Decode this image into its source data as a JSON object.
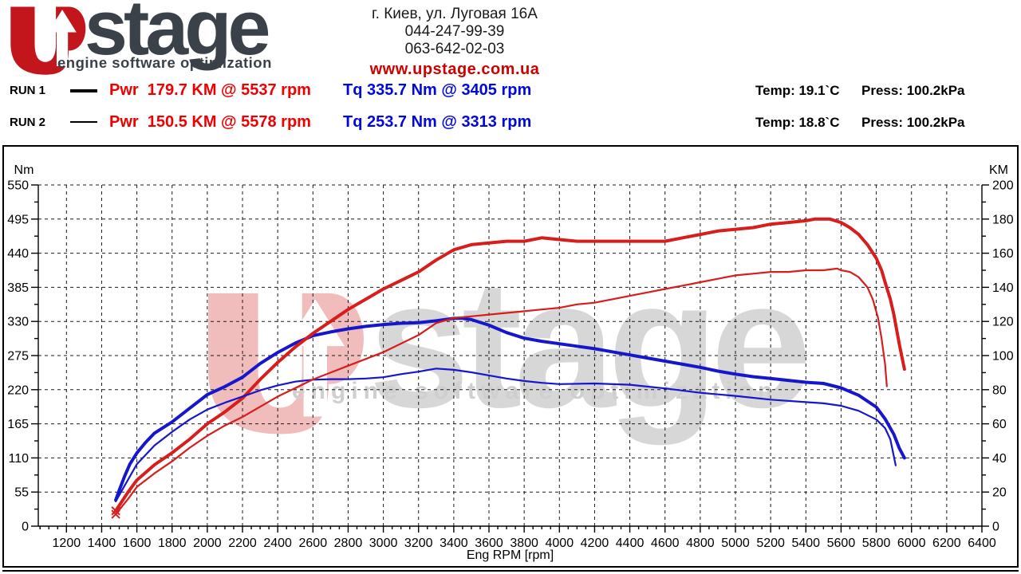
{
  "header": {
    "logo": {
      "brand": "stage",
      "tagline": "engine software optimization",
      "brand_color": "#3a4148",
      "accent_red": "#c3161c"
    },
    "contact": {
      "address": "г. Киев, ул. Луговая 16А",
      "phone1": "044-247-99-39",
      "phone2": "063-642-02-03",
      "website": "www.upstage.com.ua"
    },
    "runs": [
      {
        "label": "RUN 1",
        "power": "Pwr  179.7 KM @ 5537 rpm",
        "torque": "Tq 335.7 Nm @ 3405 rpm",
        "temp": "Temp: 19.1`C",
        "press": "Press: 100.2kPa"
      },
      {
        "label": "RUN 2",
        "power": "Pwr  150.5 KM @ 5578 rpm",
        "torque": "Tq 253.7 Nm @ 3313 rpm",
        "temp": "Temp: 18.8`C",
        "press": "Press: 100.2kPa"
      }
    ]
  },
  "watermark": {
    "brand": "stage",
    "tagline": "engine software optimization"
  },
  "chart_data": {
    "type": "line",
    "x_axis": {
      "label": "Eng RPM [rpm]",
      "min": 1200,
      "max": 6400,
      "tick_step": 200,
      "minor_step": 50
    },
    "y_left": {
      "label": "Nm",
      "min": 0,
      "max": 550,
      "tick_step": 55,
      "minor_step": 27.5
    },
    "y_right": {
      "label": "KM",
      "min": 0,
      "max": 200,
      "tick_step": 20,
      "minor_step": 10
    },
    "grid": "dashed",
    "legend_position": "header",
    "colors": {
      "power": "#d81d1d",
      "torque": "#1616cc"
    },
    "series": [
      {
        "name": "RUN 1 Torque",
        "unit": "Nm",
        "axis": "left",
        "color": "#1616cc",
        "width": 4,
        "peak": "335.7 Nm @ 3405 rpm",
        "points": [
          [
            1480,
            42
          ],
          [
            1500,
            58
          ],
          [
            1530,
            80
          ],
          [
            1560,
            100
          ],
          [
            1600,
            118
          ],
          [
            1650,
            135
          ],
          [
            1700,
            150
          ],
          [
            1800,
            168
          ],
          [
            1900,
            190
          ],
          [
            2000,
            212
          ],
          [
            2100,
            225
          ],
          [
            2200,
            240
          ],
          [
            2300,
            262
          ],
          [
            2400,
            280
          ],
          [
            2500,
            295
          ],
          [
            2600,
            307
          ],
          [
            2700,
            313
          ],
          [
            2800,
            318
          ],
          [
            2900,
            322
          ],
          [
            3000,
            325
          ],
          [
            3100,
            327
          ],
          [
            3200,
            328
          ],
          [
            3300,
            331
          ],
          [
            3400,
            335
          ],
          [
            3450,
            335
          ],
          [
            3500,
            333
          ],
          [
            3600,
            324
          ],
          [
            3700,
            312
          ],
          [
            3800,
            303
          ],
          [
            3900,
            298
          ],
          [
            4000,
            294
          ],
          [
            4100,
            290
          ],
          [
            4200,
            286
          ],
          [
            4300,
            281
          ],
          [
            4400,
            276
          ],
          [
            4500,
            271
          ],
          [
            4600,
            266
          ],
          [
            4700,
            261
          ],
          [
            4800,
            256
          ],
          [
            4900,
            250
          ],
          [
            5000,
            245
          ],
          [
            5100,
            241
          ],
          [
            5200,
            238
          ],
          [
            5300,
            235
          ],
          [
            5400,
            232
          ],
          [
            5500,
            230
          ],
          [
            5600,
            223
          ],
          [
            5700,
            211
          ],
          [
            5800,
            192
          ],
          [
            5850,
            173
          ],
          [
            5900,
            148
          ],
          [
            5930,
            126
          ],
          [
            5960,
            110
          ]
        ]
      },
      {
        "name": "RUN 1 Power",
        "unit": "KM",
        "axis": "right",
        "color": "#d81d1d",
        "width": 4,
        "peak": "179.7 KM @ 5537 rpm",
        "start_marker": "x",
        "points": [
          [
            1480,
            9
          ],
          [
            1550,
            20
          ],
          [
            1600,
            27
          ],
          [
            1700,
            36
          ],
          [
            1800,
            43
          ],
          [
            1900,
            51
          ],
          [
            2000,
            60
          ],
          [
            2100,
            67
          ],
          [
            2200,
            75
          ],
          [
            2300,
            86
          ],
          [
            2400,
            96
          ],
          [
            2500,
            105
          ],
          [
            2600,
            113
          ],
          [
            2700,
            120
          ],
          [
            2800,
            127
          ],
          [
            2900,
            133
          ],
          [
            3000,
            139
          ],
          [
            3100,
            144
          ],
          [
            3200,
            149
          ],
          [
            3300,
            156
          ],
          [
            3400,
            162
          ],
          [
            3500,
            165
          ],
          [
            3600,
            166
          ],
          [
            3700,
            167
          ],
          [
            3800,
            167
          ],
          [
            3900,
            169
          ],
          [
            4000,
            168
          ],
          [
            4100,
            167
          ],
          [
            4200,
            167
          ],
          [
            4300,
            167
          ],
          [
            4400,
            167
          ],
          [
            4500,
            167
          ],
          [
            4600,
            167
          ],
          [
            4700,
            169
          ],
          [
            4800,
            171
          ],
          [
            4900,
            173
          ],
          [
            5000,
            174
          ],
          [
            5100,
            175
          ],
          [
            5200,
            177
          ],
          [
            5300,
            178
          ],
          [
            5400,
            179
          ],
          [
            5450,
            180
          ],
          [
            5537,
            180
          ],
          [
            5600,
            178
          ],
          [
            5650,
            175
          ],
          [
            5700,
            171
          ],
          [
            5750,
            165
          ],
          [
            5800,
            157
          ],
          [
            5830,
            150
          ],
          [
            5850,
            143
          ],
          [
            5880,
            133
          ],
          [
            5900,
            124
          ],
          [
            5930,
            107
          ],
          [
            5960,
            92
          ]
        ]
      },
      {
        "name": "RUN 2 Torque",
        "unit": "Nm",
        "axis": "left",
        "color": "#1616cc",
        "width": 2.2,
        "peak": "253.7 Nm @ 3313 rpm",
        "points": [
          [
            1480,
            40
          ],
          [
            1520,
            60
          ],
          [
            1560,
            80
          ],
          [
            1600,
            100
          ],
          [
            1700,
            130
          ],
          [
            1800,
            152
          ],
          [
            1900,
            172
          ],
          [
            2000,
            188
          ],
          [
            2100,
            199
          ],
          [
            2200,
            209
          ],
          [
            2300,
            219
          ],
          [
            2400,
            227
          ],
          [
            2500,
            233
          ],
          [
            2600,
            236
          ],
          [
            2700,
            237
          ],
          [
            2800,
            237
          ],
          [
            2900,
            238
          ],
          [
            3000,
            240
          ],
          [
            3100,
            245
          ],
          [
            3200,
            249
          ],
          [
            3300,
            254
          ],
          [
            3400,
            252
          ],
          [
            3500,
            248
          ],
          [
            3600,
            243
          ],
          [
            3700,
            238
          ],
          [
            3800,
            234
          ],
          [
            3900,
            231
          ],
          [
            4000,
            229
          ],
          [
            4200,
            230
          ],
          [
            4400,
            228
          ],
          [
            4600,
            222
          ],
          [
            4800,
            215
          ],
          [
            5000,
            210
          ],
          [
            5200,
            204
          ],
          [
            5400,
            200
          ],
          [
            5500,
            198
          ],
          [
            5600,
            194
          ],
          [
            5700,
            186
          ],
          [
            5800,
            172
          ],
          [
            5850,
            158
          ],
          [
            5880,
            140
          ],
          [
            5910,
            98
          ]
        ]
      },
      {
        "name": "RUN 2 Power",
        "unit": "KM",
        "axis": "right",
        "color": "#d81d1d",
        "width": 2.2,
        "peak": "150.5 KM @ 5578 rpm",
        "start_marker": "x",
        "points": [
          [
            1480,
            7
          ],
          [
            1550,
            16
          ],
          [
            1600,
            23
          ],
          [
            1700,
            31
          ],
          [
            1800,
            38
          ],
          [
            1900,
            46
          ],
          [
            2000,
            53
          ],
          [
            2100,
            59
          ],
          [
            2200,
            64
          ],
          [
            2300,
            70
          ],
          [
            2400,
            76
          ],
          [
            2500,
            81
          ],
          [
            2600,
            86
          ],
          [
            2700,
            90
          ],
          [
            2800,
            94
          ],
          [
            2900,
            98
          ],
          [
            3000,
            102
          ],
          [
            3100,
            107
          ],
          [
            3200,
            112
          ],
          [
            3300,
            119
          ],
          [
            3400,
            122
          ],
          [
            3500,
            123
          ],
          [
            3600,
            124
          ],
          [
            3700,
            125
          ],
          [
            3800,
            126
          ],
          [
            3900,
            127
          ],
          [
            4000,
            128
          ],
          [
            4100,
            130
          ],
          [
            4200,
            131
          ],
          [
            4300,
            133
          ],
          [
            4400,
            135
          ],
          [
            4500,
            137
          ],
          [
            4600,
            139
          ],
          [
            4700,
            141
          ],
          [
            4800,
            143
          ],
          [
            4900,
            145
          ],
          [
            5000,
            147
          ],
          [
            5100,
            148
          ],
          [
            5200,
            149
          ],
          [
            5300,
            149
          ],
          [
            5400,
            150
          ],
          [
            5500,
            150
          ],
          [
            5578,
            151
          ],
          [
            5600,
            150
          ],
          [
            5650,
            149
          ],
          [
            5700,
            146
          ],
          [
            5750,
            140
          ],
          [
            5780,
            133
          ],
          [
            5810,
            122
          ],
          [
            5830,
            110
          ],
          [
            5850,
            95
          ],
          [
            5860,
            82
          ]
        ]
      }
    ]
  }
}
